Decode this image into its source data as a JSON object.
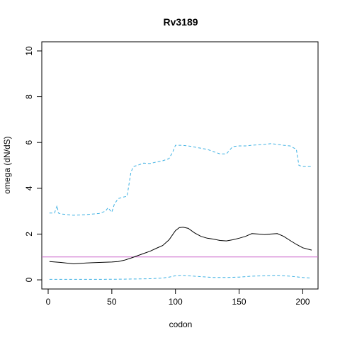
{
  "chart_data": {
    "type": "line",
    "title": "Rv3189",
    "xlabel": "codon",
    "ylabel": "omega (dN/dS)",
    "xlim": [
      -5,
      212
    ],
    "ylim": [
      -0.4,
      10.4
    ],
    "xticks": [
      0,
      50,
      100,
      150,
      200
    ],
    "yticks": [
      0,
      2,
      4,
      6,
      8,
      10
    ],
    "grid": false,
    "legend": "none",
    "reference_line": {
      "y": 1,
      "color": "#cc66cc"
    },
    "series": [
      {
        "style": "solid",
        "color": "#000000",
        "x": [
          1,
          10,
          20,
          30,
          40,
          50,
          55,
          60,
          65,
          70,
          75,
          80,
          85,
          90,
          95,
          100,
          103,
          106,
          110,
          115,
          120,
          125,
          130,
          135,
          140,
          145,
          150,
          155,
          160,
          165,
          170,
          175,
          180,
          185,
          190,
          195,
          200,
          207
        ],
        "y": [
          0.8,
          0.76,
          0.7,
          0.74,
          0.76,
          0.78,
          0.8,
          0.86,
          0.95,
          1.05,
          1.15,
          1.25,
          1.38,
          1.5,
          1.75,
          2.15,
          2.28,
          2.3,
          2.25,
          2.05,
          1.9,
          1.82,
          1.78,
          1.72,
          1.7,
          1.75,
          1.82,
          1.9,
          2.02,
          2.0,
          1.98,
          2.0,
          2.02,
          1.9,
          1.72,
          1.55,
          1.4,
          1.3
        ]
      },
      {
        "style": "dashed",
        "color": "#3eb1e3",
        "x": [
          1,
          5,
          7,
          8,
          10,
          20,
          30,
          40,
          45,
          47,
          50,
          52,
          55,
          58,
          62,
          65,
          67,
          70,
          75,
          80,
          85,
          90,
          95,
          98,
          100,
          105,
          110,
          115,
          120,
          125,
          130,
          135,
          140,
          143,
          145,
          150,
          155,
          160,
          165,
          170,
          175,
          180,
          185,
          190,
          195,
          197,
          200,
          207
        ],
        "y": [
          2.92,
          2.92,
          3.25,
          2.92,
          2.88,
          2.82,
          2.85,
          2.9,
          3.0,
          3.15,
          2.95,
          3.3,
          3.55,
          3.6,
          3.65,
          4.7,
          4.95,
          5.0,
          5.1,
          5.08,
          5.15,
          5.2,
          5.3,
          5.6,
          5.88,
          5.88,
          5.85,
          5.8,
          5.75,
          5.7,
          5.6,
          5.5,
          5.5,
          5.7,
          5.82,
          5.85,
          5.85,
          5.88,
          5.9,
          5.92,
          5.95,
          5.92,
          5.88,
          5.85,
          5.7,
          5.0,
          4.95,
          4.95
        ]
      },
      {
        "style": "dashed",
        "color": "#3eb1e3",
        "x": [
          1,
          20,
          40,
          60,
          80,
          90,
          95,
          100,
          105,
          110,
          120,
          130,
          140,
          150,
          160,
          170,
          180,
          190,
          200,
          207
        ],
        "y": [
          0.02,
          0.02,
          0.02,
          0.03,
          0.05,
          0.08,
          0.12,
          0.18,
          0.2,
          0.18,
          0.14,
          0.1,
          0.1,
          0.12,
          0.16,
          0.18,
          0.2,
          0.16,
          0.1,
          0.08
        ]
      }
    ]
  }
}
